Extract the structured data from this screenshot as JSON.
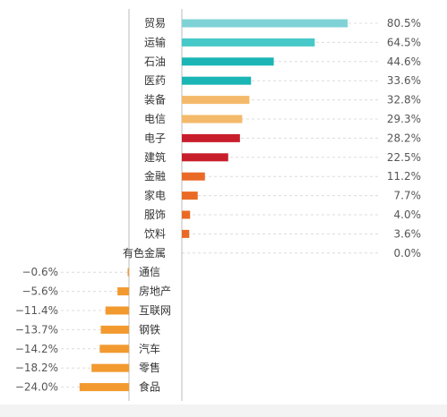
{
  "chart_data": {
    "type": "bar",
    "orientation": "horizontal",
    "value_format": "percent",
    "categories": [
      "贸易",
      "运输",
      "石油",
      "医药",
      "装备",
      "电信",
      "电子",
      "建筑",
      "金融",
      "家电",
      "服饰",
      "饮料",
      "有色金属",
      "通信",
      "房地产",
      "互联网",
      "钢铁",
      "汽车",
      "零售",
      "食品"
    ],
    "values": [
      80.5,
      64.5,
      44.6,
      33.6,
      32.8,
      29.3,
      28.2,
      22.5,
      11.2,
      7.7,
      4.0,
      3.6,
      0.0,
      -0.6,
      -5.6,
      -11.4,
      -13.7,
      -14.2,
      -18.2,
      -24.0
    ],
    "value_labels": [
      "80.5%",
      "64.5%",
      "44.6%",
      "33.6%",
      "32.8%",
      "29.3%",
      "28.2%",
      "22.5%",
      "11.2%",
      "7.7%",
      "4.0%",
      "3.6%",
      "0.0%",
      "−0.6%",
      "−5.6%",
      "−11.4%",
      "−13.7%",
      "−14.2%",
      "−18.2%",
      "−24.0%"
    ],
    "bar_colors": [
      "#7fd3d6",
      "#47c9c9",
      "#1bb5b5",
      "#1bb5b5",
      "#f4b96a",
      "#f4b96a",
      "#c81e2b",
      "#c81e2b",
      "#ea6a25",
      "#ea6a25",
      "#ea6a25",
      "#ea6a25",
      "#ea6a25",
      "#f29a2f",
      "#f29a2f",
      "#f29a2f",
      "#f29a2f",
      "#f29a2f",
      "#f29a2f",
      "#f29a2f"
    ],
    "grid": "dashed-horizontal-guides",
    "legend": "none"
  }
}
